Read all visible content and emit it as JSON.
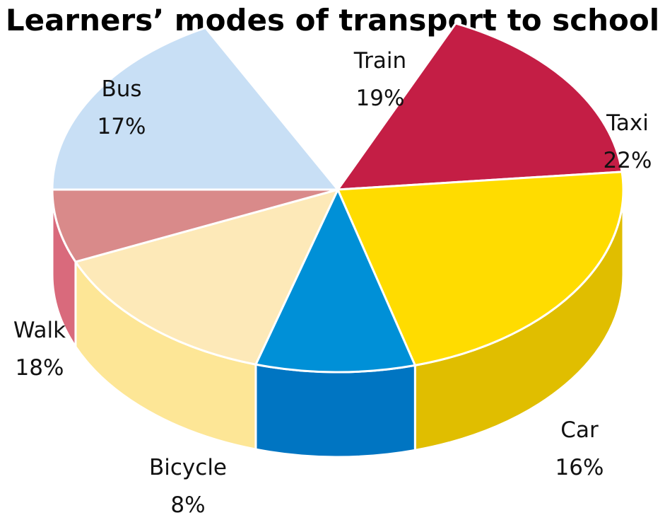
{
  "chart_data": {
    "type": "pie",
    "title": "Learners’ modes of transport to school",
    "slices": [
      {
        "name": "Train",
        "value": 19,
        "label": "19%",
        "color": "#C41E45",
        "side_color": "#9E1638"
      },
      {
        "name": "Taxi",
        "value": 22,
        "label": "22%",
        "color": "#FFDC00",
        "side_color": "#E0BE00"
      },
      {
        "name": "Car",
        "value": 16,
        "label": "16%",
        "color": "#0090D7",
        "side_color": "#0075C2"
      },
      {
        "name": "Bicycle",
        "value": 8,
        "label": "8%",
        "color": "#FDE9B8",
        "side_color": "#FDE696"
      },
      {
        "name": "Walk",
        "value": 18,
        "label": "18%",
        "color": "#D98A8A",
        "side_color": "#D96A7C"
      },
      {
        "name": "Bus",
        "value": 17,
        "label": "17%",
        "color": "#C8DFF5",
        "side_color": "#A9C7E6"
      }
    ]
  }
}
